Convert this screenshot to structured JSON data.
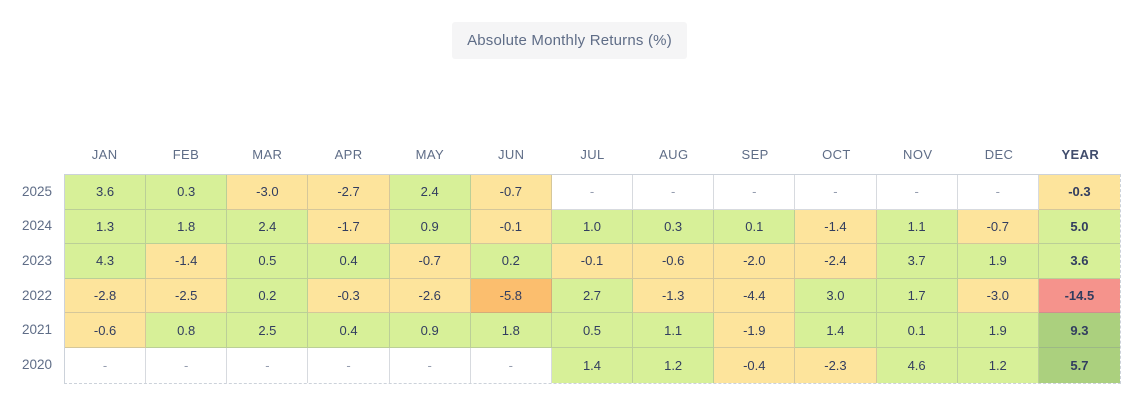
{
  "colors": {
    "pos": "#d7f098",
    "pos_strong": "#abd07e",
    "neg": "#fde49c",
    "neg_strong": "#fbbe6e",
    "neg_severe": "#f5938c",
    "empty": "#ffffff"
  },
  "chart_data": {
    "type": "heatmap",
    "title": "Absolute Monthly Returns (%)",
    "columns": [
      "JAN",
      "FEB",
      "MAR",
      "APR",
      "MAY",
      "JUN",
      "JUL",
      "AUG",
      "SEP",
      "OCT",
      "NOV",
      "DEC",
      "YEAR"
    ],
    "rows": [
      {
        "year": "2025",
        "cells": [
          {
            "v": "3.6",
            "c": "pos"
          },
          {
            "v": "0.3",
            "c": "pos"
          },
          {
            "v": "-3.0",
            "c": "neg"
          },
          {
            "v": "-2.7",
            "c": "neg"
          },
          {
            "v": "2.4",
            "c": "pos"
          },
          {
            "v": "-0.7",
            "c": "neg"
          },
          {
            "v": "-",
            "c": "empty"
          },
          {
            "v": "-",
            "c": "empty"
          },
          {
            "v": "-",
            "c": "empty"
          },
          {
            "v": "-",
            "c": "empty"
          },
          {
            "v": "-",
            "c": "empty"
          },
          {
            "v": "-",
            "c": "empty"
          },
          {
            "v": "-0.3",
            "c": "neg"
          }
        ]
      },
      {
        "year": "2024",
        "cells": [
          {
            "v": "1.3",
            "c": "pos"
          },
          {
            "v": "1.8",
            "c": "pos"
          },
          {
            "v": "2.4",
            "c": "pos"
          },
          {
            "v": "-1.7",
            "c": "neg"
          },
          {
            "v": "0.9",
            "c": "pos"
          },
          {
            "v": "-0.1",
            "c": "neg"
          },
          {
            "v": "1.0",
            "c": "pos"
          },
          {
            "v": "0.3",
            "c": "pos"
          },
          {
            "v": "0.1",
            "c": "pos"
          },
          {
            "v": "-1.4",
            "c": "neg"
          },
          {
            "v": "1.1",
            "c": "pos"
          },
          {
            "v": "-0.7",
            "c": "neg"
          },
          {
            "v": "5.0",
            "c": "pos"
          }
        ]
      },
      {
        "year": "2023",
        "cells": [
          {
            "v": "4.3",
            "c": "pos"
          },
          {
            "v": "-1.4",
            "c": "neg"
          },
          {
            "v": "0.5",
            "c": "pos"
          },
          {
            "v": "0.4",
            "c": "pos"
          },
          {
            "v": "-0.7",
            "c": "neg"
          },
          {
            "v": "0.2",
            "c": "pos"
          },
          {
            "v": "-0.1",
            "c": "neg"
          },
          {
            "v": "-0.6",
            "c": "neg"
          },
          {
            "v": "-2.0",
            "c": "neg"
          },
          {
            "v": "-2.4",
            "c": "neg"
          },
          {
            "v": "3.7",
            "c": "pos"
          },
          {
            "v": "1.9",
            "c": "pos"
          },
          {
            "v": "3.6",
            "c": "pos"
          }
        ]
      },
      {
        "year": "2022",
        "cells": [
          {
            "v": "-2.8",
            "c": "neg"
          },
          {
            "v": "-2.5",
            "c": "neg"
          },
          {
            "v": "0.2",
            "c": "pos"
          },
          {
            "v": "-0.3",
            "c": "neg"
          },
          {
            "v": "-2.6",
            "c": "neg"
          },
          {
            "v": "-5.8",
            "c": "neg_strong"
          },
          {
            "v": "2.7",
            "c": "pos"
          },
          {
            "v": "-1.3",
            "c": "neg"
          },
          {
            "v": "-4.4",
            "c": "neg"
          },
          {
            "v": "3.0",
            "c": "pos"
          },
          {
            "v": "1.7",
            "c": "pos"
          },
          {
            "v": "-3.0",
            "c": "neg"
          },
          {
            "v": "-14.5",
            "c": "neg_severe"
          }
        ]
      },
      {
        "year": "2021",
        "cells": [
          {
            "v": "-0.6",
            "c": "neg"
          },
          {
            "v": "0.8",
            "c": "pos"
          },
          {
            "v": "2.5",
            "c": "pos"
          },
          {
            "v": "0.4",
            "c": "pos"
          },
          {
            "v": "0.9",
            "c": "pos"
          },
          {
            "v": "1.8",
            "c": "pos"
          },
          {
            "v": "0.5",
            "c": "pos"
          },
          {
            "v": "1.1",
            "c": "pos"
          },
          {
            "v": "-1.9",
            "c": "neg"
          },
          {
            "v": "1.4",
            "c": "pos"
          },
          {
            "v": "0.1",
            "c": "pos"
          },
          {
            "v": "1.9",
            "c": "pos"
          },
          {
            "v": "9.3",
            "c": "pos_strong"
          }
        ]
      },
      {
        "year": "2020",
        "cells": [
          {
            "v": "-",
            "c": "empty"
          },
          {
            "v": "-",
            "c": "empty"
          },
          {
            "v": "-",
            "c": "empty"
          },
          {
            "v": "-",
            "c": "empty"
          },
          {
            "v": "-",
            "c": "empty"
          },
          {
            "v": "-",
            "c": "empty"
          },
          {
            "v": "1.4",
            "c": "pos"
          },
          {
            "v": "1.2",
            "c": "pos"
          },
          {
            "v": "-0.4",
            "c": "neg"
          },
          {
            "v": "-2.3",
            "c": "neg"
          },
          {
            "v": "4.6",
            "c": "pos"
          },
          {
            "v": "1.2",
            "c": "pos"
          },
          {
            "v": "5.7",
            "c": "pos_strong"
          }
        ]
      }
    ]
  }
}
